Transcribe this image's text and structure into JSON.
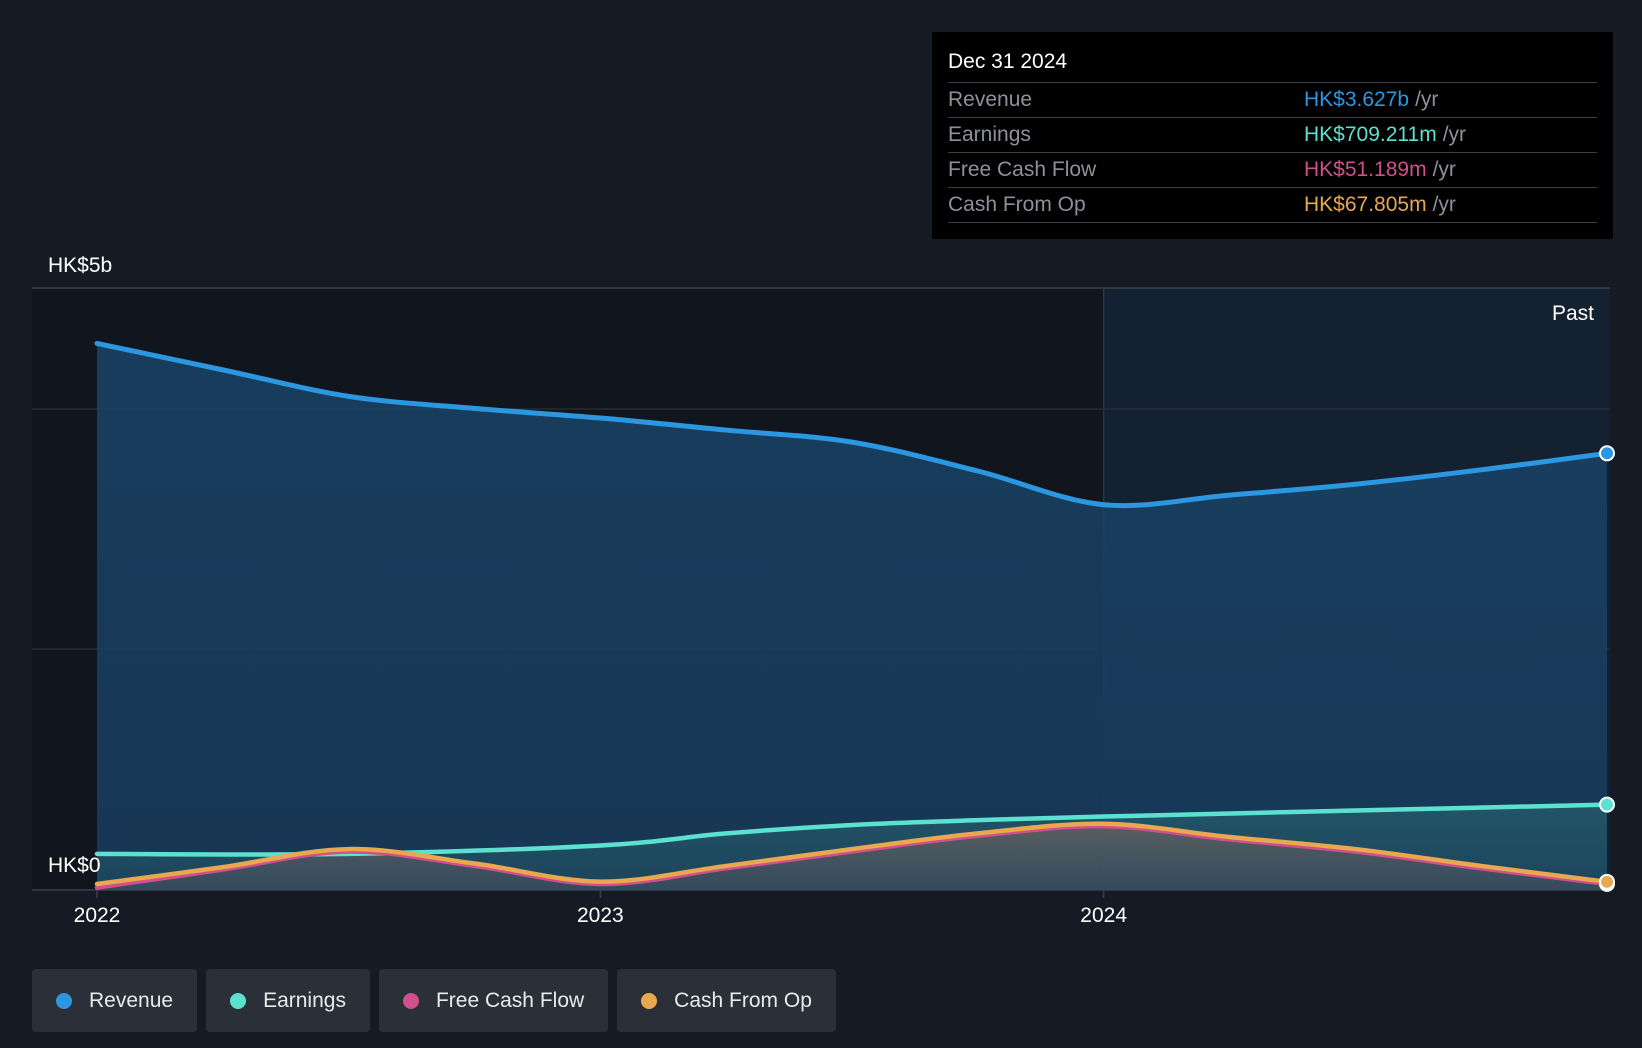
{
  "chart_data": {
    "type": "area",
    "currency": "HK$",
    "unit_scale": "billions",
    "y_labels": [
      "HK$5b",
      "HK$0"
    ],
    "ylim": [
      0,
      5
    ],
    "x_tick_labels": [
      "2022",
      "2023",
      "2024"
    ],
    "x_ticks": [
      2022,
      2023,
      2024
    ],
    "xlim": [
      2022,
      2025
    ],
    "period_label": "Past",
    "series": [
      {
        "name": "Revenue",
        "color": "#2b97e1",
        "x": [
          2022.0,
          2022.25,
          2022.5,
          2022.75,
          2023.0,
          2023.25,
          2023.5,
          2023.75,
          2024.0,
          2024.25,
          2024.5,
          2024.75,
          2025.0
        ],
        "values": [
          4.54,
          4.32,
          4.1,
          4.0,
          3.92,
          3.82,
          3.72,
          3.48,
          3.2,
          3.28,
          3.37,
          3.49,
          3.627
        ]
      },
      {
        "name": "Earnings",
        "color": "#5ce0d0",
        "x": [
          2022.0,
          2022.5,
          2023.0,
          2023.25,
          2023.5,
          2023.75,
          2024.0,
          2024.5,
          2025.0
        ],
        "values": [
          0.3,
          0.3,
          0.37,
          0.47,
          0.54,
          0.58,
          0.61,
          0.66,
          0.709
        ]
      },
      {
        "name": "Free Cash Flow",
        "color": "#d04f8c",
        "x": [
          2022.0,
          2022.25,
          2022.5,
          2022.75,
          2023.0,
          2023.25,
          2023.5,
          2023.75,
          2024.0,
          2024.25,
          2024.5,
          2024.75,
          2025.0
        ],
        "values": [
          0.02,
          0.17,
          0.32,
          0.2,
          0.05,
          0.18,
          0.32,
          0.45,
          0.53,
          0.42,
          0.32,
          0.18,
          0.051
        ]
      },
      {
        "name": "Cash From Op",
        "color": "#e9a84f",
        "x": [
          2022.0,
          2022.25,
          2022.5,
          2022.75,
          2023.0,
          2023.25,
          2023.5,
          2023.75,
          2024.0,
          2024.25,
          2024.5,
          2024.75,
          2025.0
        ],
        "values": [
          0.05,
          0.19,
          0.34,
          0.22,
          0.07,
          0.2,
          0.34,
          0.47,
          0.55,
          0.44,
          0.34,
          0.2,
          0.068
        ]
      }
    ]
  },
  "tooltip": {
    "date": "Dec 31 2024",
    "rows": [
      {
        "label": "Revenue",
        "value": "HK$3.627b",
        "unit": "/yr",
        "color": "#2b97e1"
      },
      {
        "label": "Earnings",
        "value": "HK$709.211m",
        "unit": "/yr",
        "color": "#5ce0d0"
      },
      {
        "label": "Free Cash Flow",
        "value": "HK$51.189m",
        "unit": "/yr",
        "color": "#d04f8c"
      },
      {
        "label": "Cash From Op",
        "value": "HK$67.805m",
        "unit": "/yr",
        "color": "#e9a84f"
      }
    ]
  },
  "legend": [
    {
      "label": "Revenue",
      "color": "#2b97e1"
    },
    {
      "label": "Earnings",
      "color": "#5ce0d0"
    },
    {
      "label": "Free Cash Flow",
      "color": "#d04f8c"
    },
    {
      "label": "Cash From Op",
      "color": "#e9a84f"
    }
  ]
}
